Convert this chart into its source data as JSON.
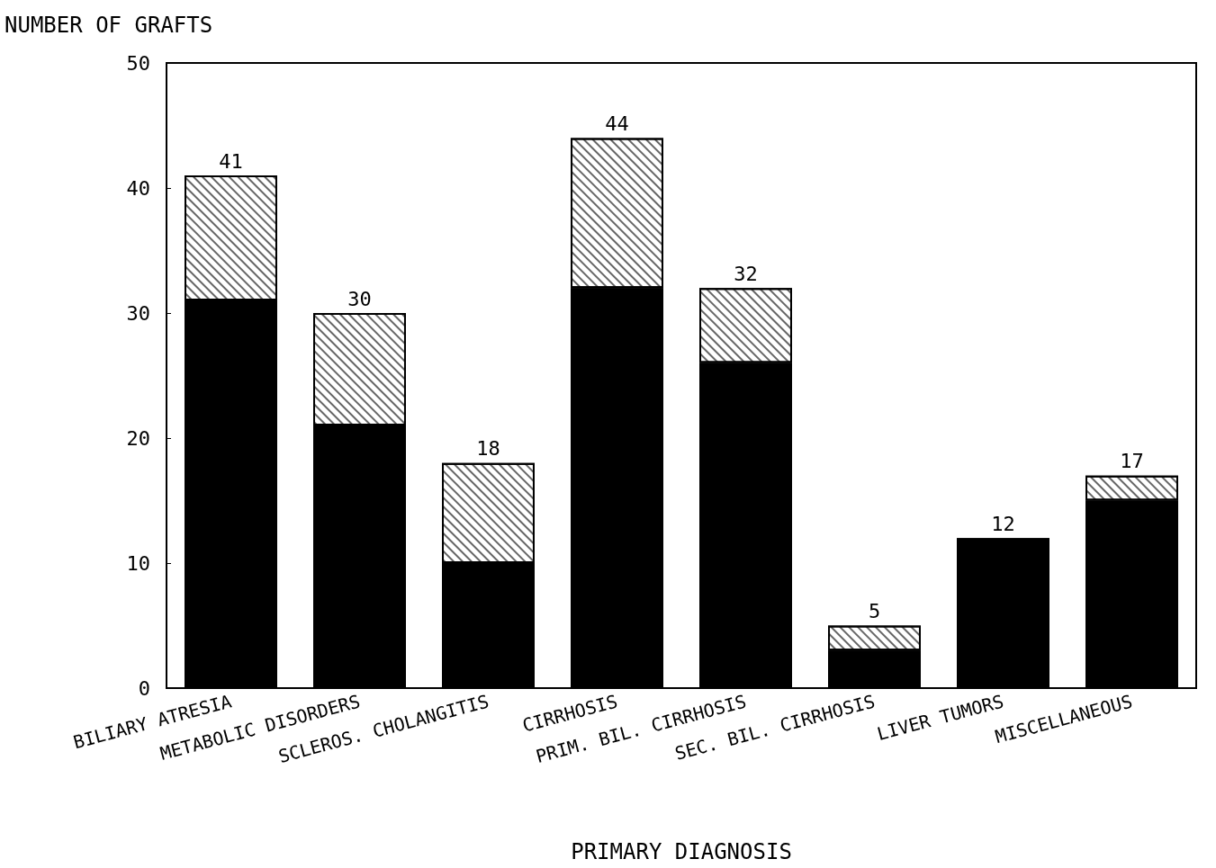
{
  "chart_data": {
    "type": "bar",
    "stacked": true,
    "ylabel": "NUMBER OF GRAFTS",
    "xlabel": "PRIMARY DIAGNOSIS",
    "categories": [
      "BILIARY ATRESIA",
      "METABOLIC DISORDERS",
      "SCLEROS. CHOLANGITIS",
      "CIRRHOSIS",
      "PRIM. BIL. CIRRHOSIS",
      "SEC. BIL. CIRRHOSIS",
      "LIVER TUMORS",
      "MISCELLANEOUS"
    ],
    "series": [
      {
        "color": "#000000",
        "values": [
          31,
          21,
          10,
          32,
          26,
          3,
          12,
          15
        ]
      },
      {
        "color": "#ffffff",
        "values": [
          10,
          9,
          8,
          12,
          6,
          2,
          0,
          2
        ]
      }
    ],
    "totals": [
      "41",
      "30",
      "18",
      "44",
      "32",
      "5",
      "12",
      "17"
    ],
    "ylim": [
      0,
      50
    ],
    "yticks": [
      0,
      10,
      20,
      30,
      40,
      50
    ],
    "grid": false
  }
}
